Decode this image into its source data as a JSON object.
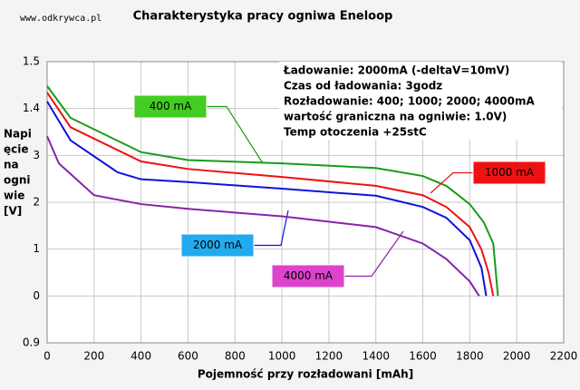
{
  "chart_data": {
    "type": "line",
    "watermark": "www.odkrywca.pl",
    "title": "Charakterystyka pracy ogniwa Eneloop",
    "ylabel": [
      "Napi",
      "ęcie",
      "na",
      "ogni",
      "wie",
      "[V]"
    ],
    "xlabel": "Pojemność przy rozładowani [mAh]",
    "notes": [
      "Ładowanie: 2000mA (-deltaV=10mV)",
      "Czas od ładowania: 3godz",
      "Rozładowanie: 400; 1000; 2000; 4000mA",
      "wartość graniczna na ogniwie: 1.0V)",
      "Temp otoczenia +25stC"
    ],
    "xlim": [
      0,
      2200
    ],
    "xticks": [
      0,
      200,
      400,
      600,
      800,
      1000,
      1200,
      1400,
      1600,
      1800,
      2000,
      2200
    ],
    "ylim": [
      0.9,
      1.5
    ],
    "yticks": [
      1.5,
      1.4,
      {
        "value": 1.3,
        "label": "3"
      },
      {
        "value": 1.2,
        "label": "2"
      },
      {
        "value": 1.1,
        "label": "1"
      },
      {
        "value": 1.0,
        "label": "0"
      },
      0.9
    ],
    "grid": true,
    "series": [
      {
        "name": "400 mA",
        "color": "#1a9a1a",
        "box_color": "#44cc22",
        "x": [
          0,
          100,
          400,
          600,
          1000,
          1400,
          1600,
          1700,
          1800,
          1860,
          1900,
          1920
        ],
        "values": [
          1.448,
          1.38,
          1.307,
          1.29,
          1.283,
          1.273,
          1.256,
          1.235,
          1.196,
          1.157,
          1.112,
          1.0
        ]
      },
      {
        "name": "1000 mA",
        "color": "#ee1111",
        "box_color": "#ee1111",
        "x": [
          0,
          100,
          400,
          600,
          1000,
          1400,
          1600,
          1700,
          1800,
          1850,
          1880,
          1900
        ],
        "values": [
          1.434,
          1.36,
          1.287,
          1.271,
          1.254,
          1.235,
          1.215,
          1.19,
          1.147,
          1.099,
          1.05,
          1.0
        ]
      },
      {
        "name": "2000 mA",
        "color": "#1111dd",
        "box_color": "#22aaee",
        "x": [
          0,
          100,
          300,
          400,
          600,
          1000,
          1400,
          1600,
          1700,
          1800,
          1850,
          1870
        ],
        "values": [
          1.415,
          1.332,
          1.264,
          1.249,
          1.243,
          1.229,
          1.214,
          1.19,
          1.167,
          1.119,
          1.06,
          1.0
        ]
      },
      {
        "name": "4000 mA",
        "color": "#8822aa",
        "box_color": "#dd44cc",
        "x": [
          0,
          50,
          200,
          400,
          600,
          1000,
          1400,
          1600,
          1700,
          1800,
          1840
        ],
        "values": [
          1.341,
          1.283,
          1.215,
          1.196,
          1.186,
          1.17,
          1.147,
          1.112,
          1.079,
          1.031,
          1.0
        ]
      }
    ]
  }
}
